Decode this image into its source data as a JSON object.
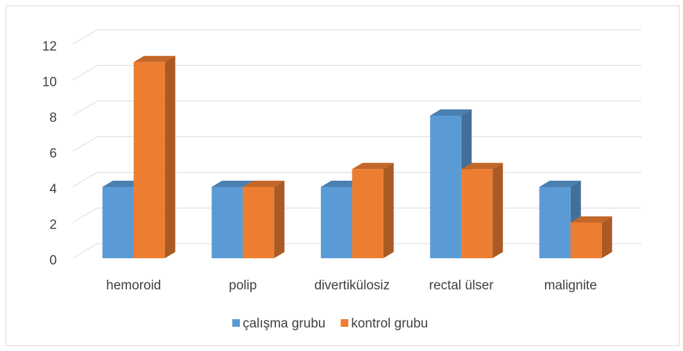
{
  "chart_data": {
    "type": "bar3d",
    "categories": [
      "hemoroid",
      "polip",
      "divertikülosiz",
      "rectal ülser",
      "malignite"
    ],
    "series": [
      {
        "name": "çalışma grubu",
        "color": "#5b9bd5",
        "values": [
          4,
          4,
          4,
          8,
          4
        ]
      },
      {
        "name": "kontrol grubu",
        "color": "#ed7d31",
        "values": [
          11,
          4,
          5,
          5,
          2
        ]
      }
    ],
    "ylim": [
      0,
      12
    ],
    "yticks": [
      0,
      2,
      4,
      6,
      8,
      10,
      12
    ],
    "grid": true,
    "legend": "bottom"
  }
}
